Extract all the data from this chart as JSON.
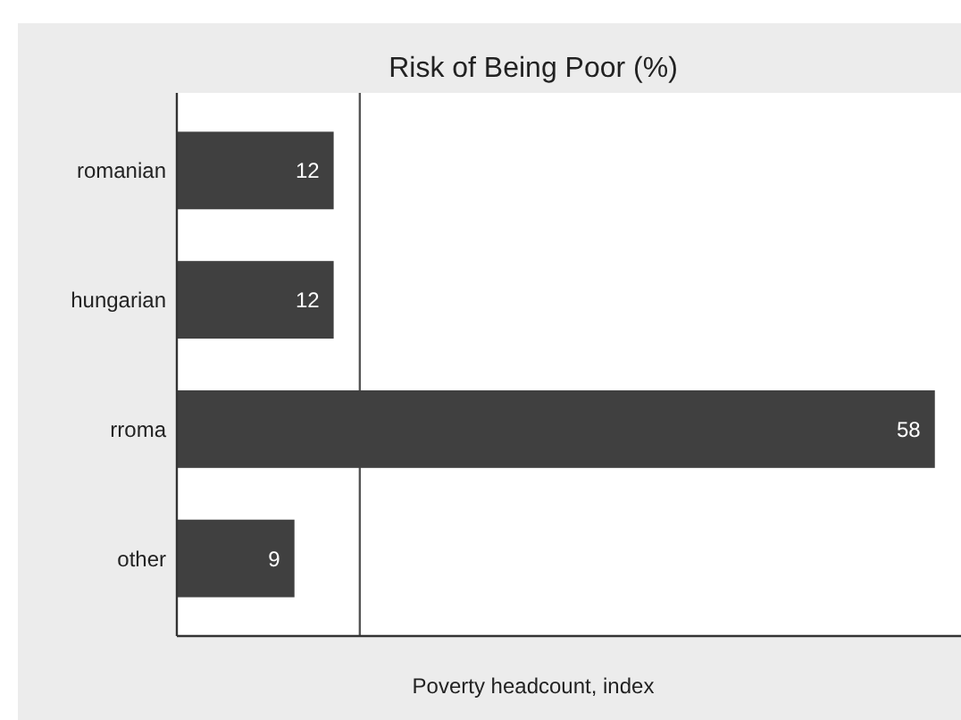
{
  "chart_data": {
    "type": "bar",
    "orientation": "horizontal",
    "title": "Risk of Being Poor (%)",
    "xlabel": "Poverty headcount, index",
    "categories": [
      "romanian",
      "hungarian",
      "rroma",
      "other"
    ],
    "values": [
      12,
      12,
      58,
      9
    ],
    "color": "#404040",
    "data_labels": true,
    "xlim": [
      0,
      60
    ],
    "tick_labels": "y",
    "ref_lines": [
      {
        "axis": "x",
        "value": 14,
        "color": "#555555"
      }
    ]
  }
}
